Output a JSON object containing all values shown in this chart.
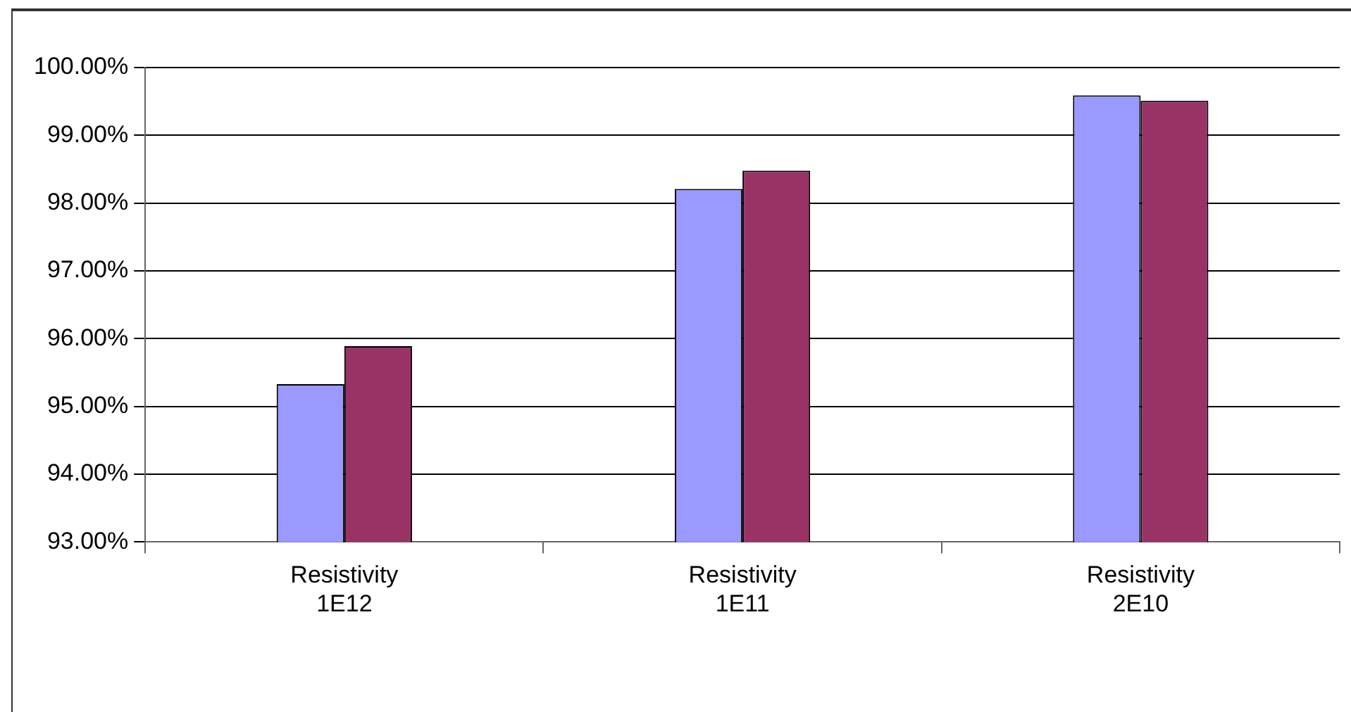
{
  "chart_data": {
    "type": "bar",
    "categories": [
      "Resistivity\n1E12",
      "Resistivity\n1E11",
      "Resistivity\n2E10"
    ],
    "series": [
      {
        "color": "#9999ff",
        "values": [
          95.33,
          98.21,
          99.59
        ]
      },
      {
        "color": "#993366",
        "values": [
          95.89,
          98.48,
          99.51
        ]
      }
    ],
    "ylim": [
      93,
      100
    ],
    "yticks": [
      {
        "value": 93,
        "label": "93.00%"
      },
      {
        "value": 94,
        "label": "94.00%"
      },
      {
        "value": 95,
        "label": "95.00%"
      },
      {
        "value": 96,
        "label": "96.00%"
      },
      {
        "value": 97,
        "label": "97.00%"
      },
      {
        "value": 98,
        "label": "98.00%"
      },
      {
        "value": 99,
        "label": "99.00%"
      },
      {
        "value": 100,
        "label": "100.00%"
      }
    ],
    "grid": "y"
  }
}
